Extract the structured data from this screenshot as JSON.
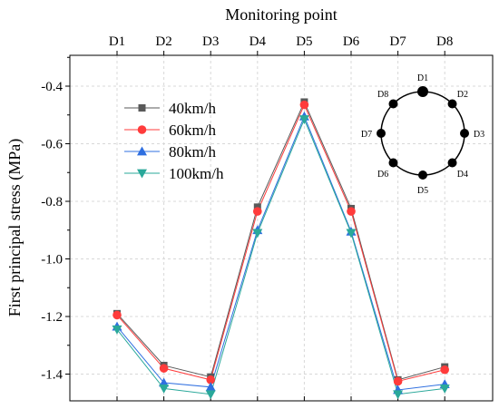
{
  "chart_data": {
    "type": "line",
    "title": "Monitoring point",
    "xlabel": "",
    "ylabel": "First principal stress (MPa)",
    "categories": [
      "D1",
      "D2",
      "D3",
      "D4",
      "D5",
      "D6",
      "D7",
      "D8"
    ],
    "ylim": [
      -1.5,
      -0.3
    ],
    "yticks": [
      -0.4,
      -0.6,
      -0.8,
      -1.0,
      -1.2,
      -1.4
    ],
    "ytick_labels": [
      "-0.4",
      "-0.6",
      "-0.8",
      "-1.0",
      "-1.2",
      "-1.4"
    ],
    "grid": true,
    "legend_position": "upper-left",
    "series": [
      {
        "name": "40km/h",
        "color": "#595959",
        "marker": "square",
        "values": [
          -1.19,
          -1.37,
          -1.41,
          -0.82,
          -0.455,
          -0.825,
          -1.42,
          -1.375
        ]
      },
      {
        "name": "60km/h",
        "color": "#ff3b3b",
        "marker": "circle",
        "values": [
          -1.195,
          -1.38,
          -1.42,
          -0.835,
          -0.465,
          -0.835,
          -1.425,
          -1.385
        ]
      },
      {
        "name": "80km/h",
        "color": "#2f6fe0",
        "marker": "triangle-up",
        "values": [
          -1.235,
          -1.43,
          -1.445,
          -0.9,
          -0.505,
          -0.905,
          -1.455,
          -1.435
        ]
      },
      {
        "name": "100km/h",
        "color": "#2aa89a",
        "marker": "triangle-down",
        "values": [
          -1.245,
          -1.45,
          -1.47,
          -0.91,
          -0.515,
          -0.91,
          -1.47,
          -1.45
        ]
      }
    ],
    "inset": {
      "labels": [
        "D1",
        "D2",
        "D3",
        "D4",
        "D5",
        "D6",
        "D7",
        "D8"
      ]
    }
  }
}
